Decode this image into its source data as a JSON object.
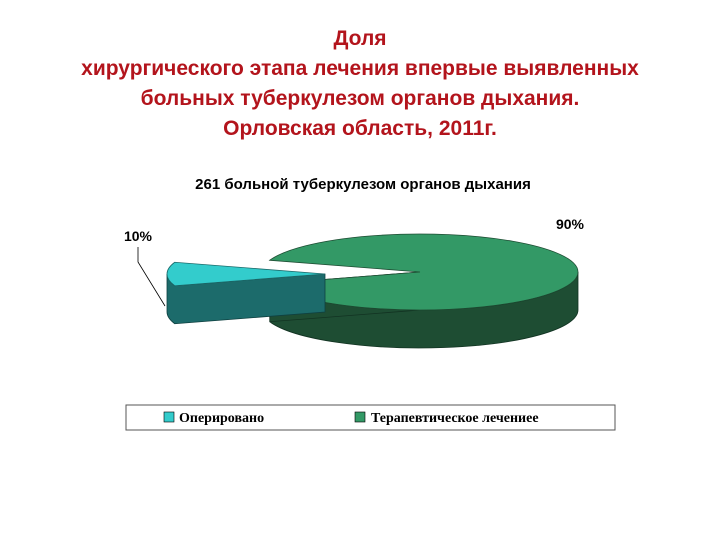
{
  "slide": {
    "title_lines": [
      "Доля",
      "хирургического этапа лечения впервые выявленных",
      "больных туберкулезом органов дыхания.",
      "Орловская область, 2011г."
    ]
  },
  "chart_data": {
    "type": "pie",
    "title": "261 больной туберкулезом органов дыхания",
    "slices": [
      {
        "label": "Оперировано",
        "value": 10,
        "display": "10%",
        "color": "#33cccc",
        "side_color": "#1c6b6b"
      },
      {
        "label": "Терапевтическое лечениеe",
        "value": 90,
        "display": "90%",
        "color": "#339966",
        "side_color": "#1e4d33"
      }
    ],
    "legend_position": "bottom",
    "three_d": true,
    "exploded_slice": 0
  }
}
